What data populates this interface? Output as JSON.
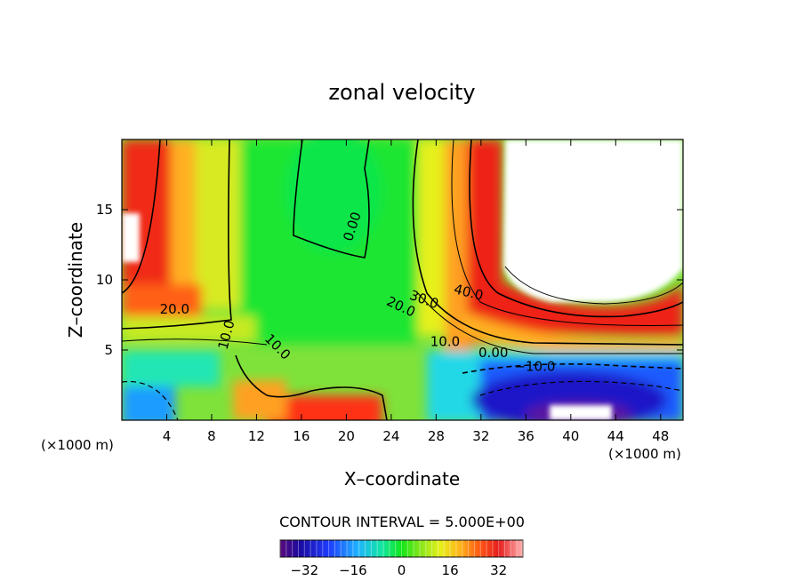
{
  "chart_data": {
    "type": "heatmap",
    "title": "zonal velocity",
    "xlabel": "X–coordinate",
    "ylabel": "Z–coordinate",
    "x_unit": "(×1000 m)",
    "z_unit": "(×1000 m)",
    "xlim": [
      0,
      50
    ],
    "ylim": [
      0,
      20
    ],
    "x_ticks": [
      4,
      8,
      12,
      16,
      20,
      24,
      28,
      32,
      36,
      40,
      44,
      48
    ],
    "y_ticks": [
      5,
      10,
      15
    ],
    "contour_interval": "CONTOUR INTERVAL = 5.000E+00",
    "colorbar": {
      "range": [
        -40,
        40
      ],
      "tick_values": [
        -32,
        -16,
        0,
        16,
        32
      ],
      "tick_labels": [
        "−32",
        "−16",
        "0",
        "16",
        "32"
      ]
    },
    "contour_labels": [
      {
        "text": "40.0",
        "x": 30.8,
        "z": 8.8,
        "angle": 14
      },
      {
        "text": "30.0",
        "x": 26.8,
        "z": 8.3,
        "angle": 20
      },
      {
        "text": "20.0",
        "x": 24.7,
        "z": 7.8,
        "angle": 25
      },
      {
        "text": "20.0",
        "x": 4.7,
        "z": 7.6,
        "angle": 0
      },
      {
        "text": "10.0",
        "x": 9.7,
        "z": 6.0,
        "angle": -75
      },
      {
        "text": "10.0",
        "x": 13.6,
        "z": 5.0,
        "angle": 45
      },
      {
        "text": "10.0",
        "x": 28.8,
        "z": 5.3,
        "angle": 0
      },
      {
        "text": "0.00",
        "x": 20.9,
        "z": 13.7,
        "angle": -72
      },
      {
        "text": "0.00",
        "x": 33.1,
        "z": 4.5,
        "angle": 0
      },
      {
        "text": "−10.0",
        "x": 36.8,
        "z": 3.5,
        "angle": 0
      }
    ],
    "missing_regions": [
      {
        "description": "top-right undefined area"
      },
      {
        "description": "bottom-center undefined area"
      },
      {
        "description": "top-left undefined area"
      }
    ]
  }
}
